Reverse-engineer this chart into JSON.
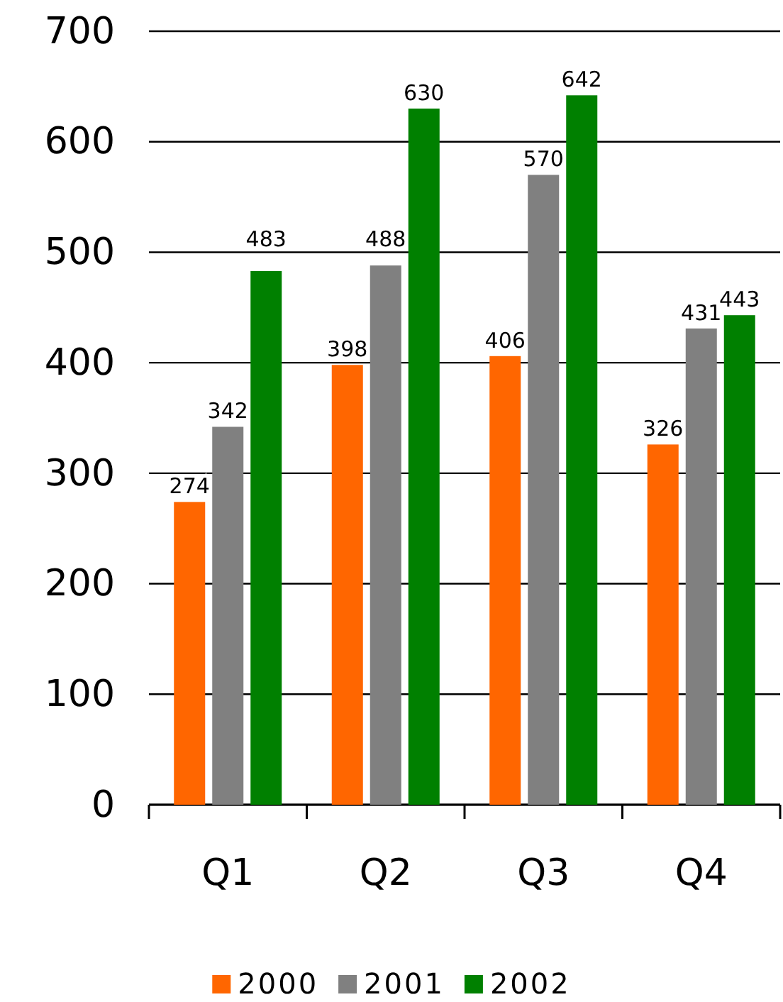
{
  "chart_data": {
    "type": "bar",
    "categories": [
      "Q1",
      "Q2",
      "Q3",
      "Q4"
    ],
    "series": [
      {
        "name": "2000",
        "color": "#ff6600",
        "values": [
          274,
          398,
          406,
          326
        ]
      },
      {
        "name": "2001",
        "color": "#808080",
        "values": [
          342,
          488,
          570,
          431
        ]
      },
      {
        "name": "2002",
        "color": "#008000",
        "values": [
          483,
          630,
          642,
          443
        ]
      }
    ],
    "ylim": [
      0,
      700
    ],
    "yticks": [
      0,
      100,
      200,
      300,
      400,
      500,
      600,
      700
    ],
    "grid": "y",
    "legend": "bottom",
    "data_labels": true
  }
}
